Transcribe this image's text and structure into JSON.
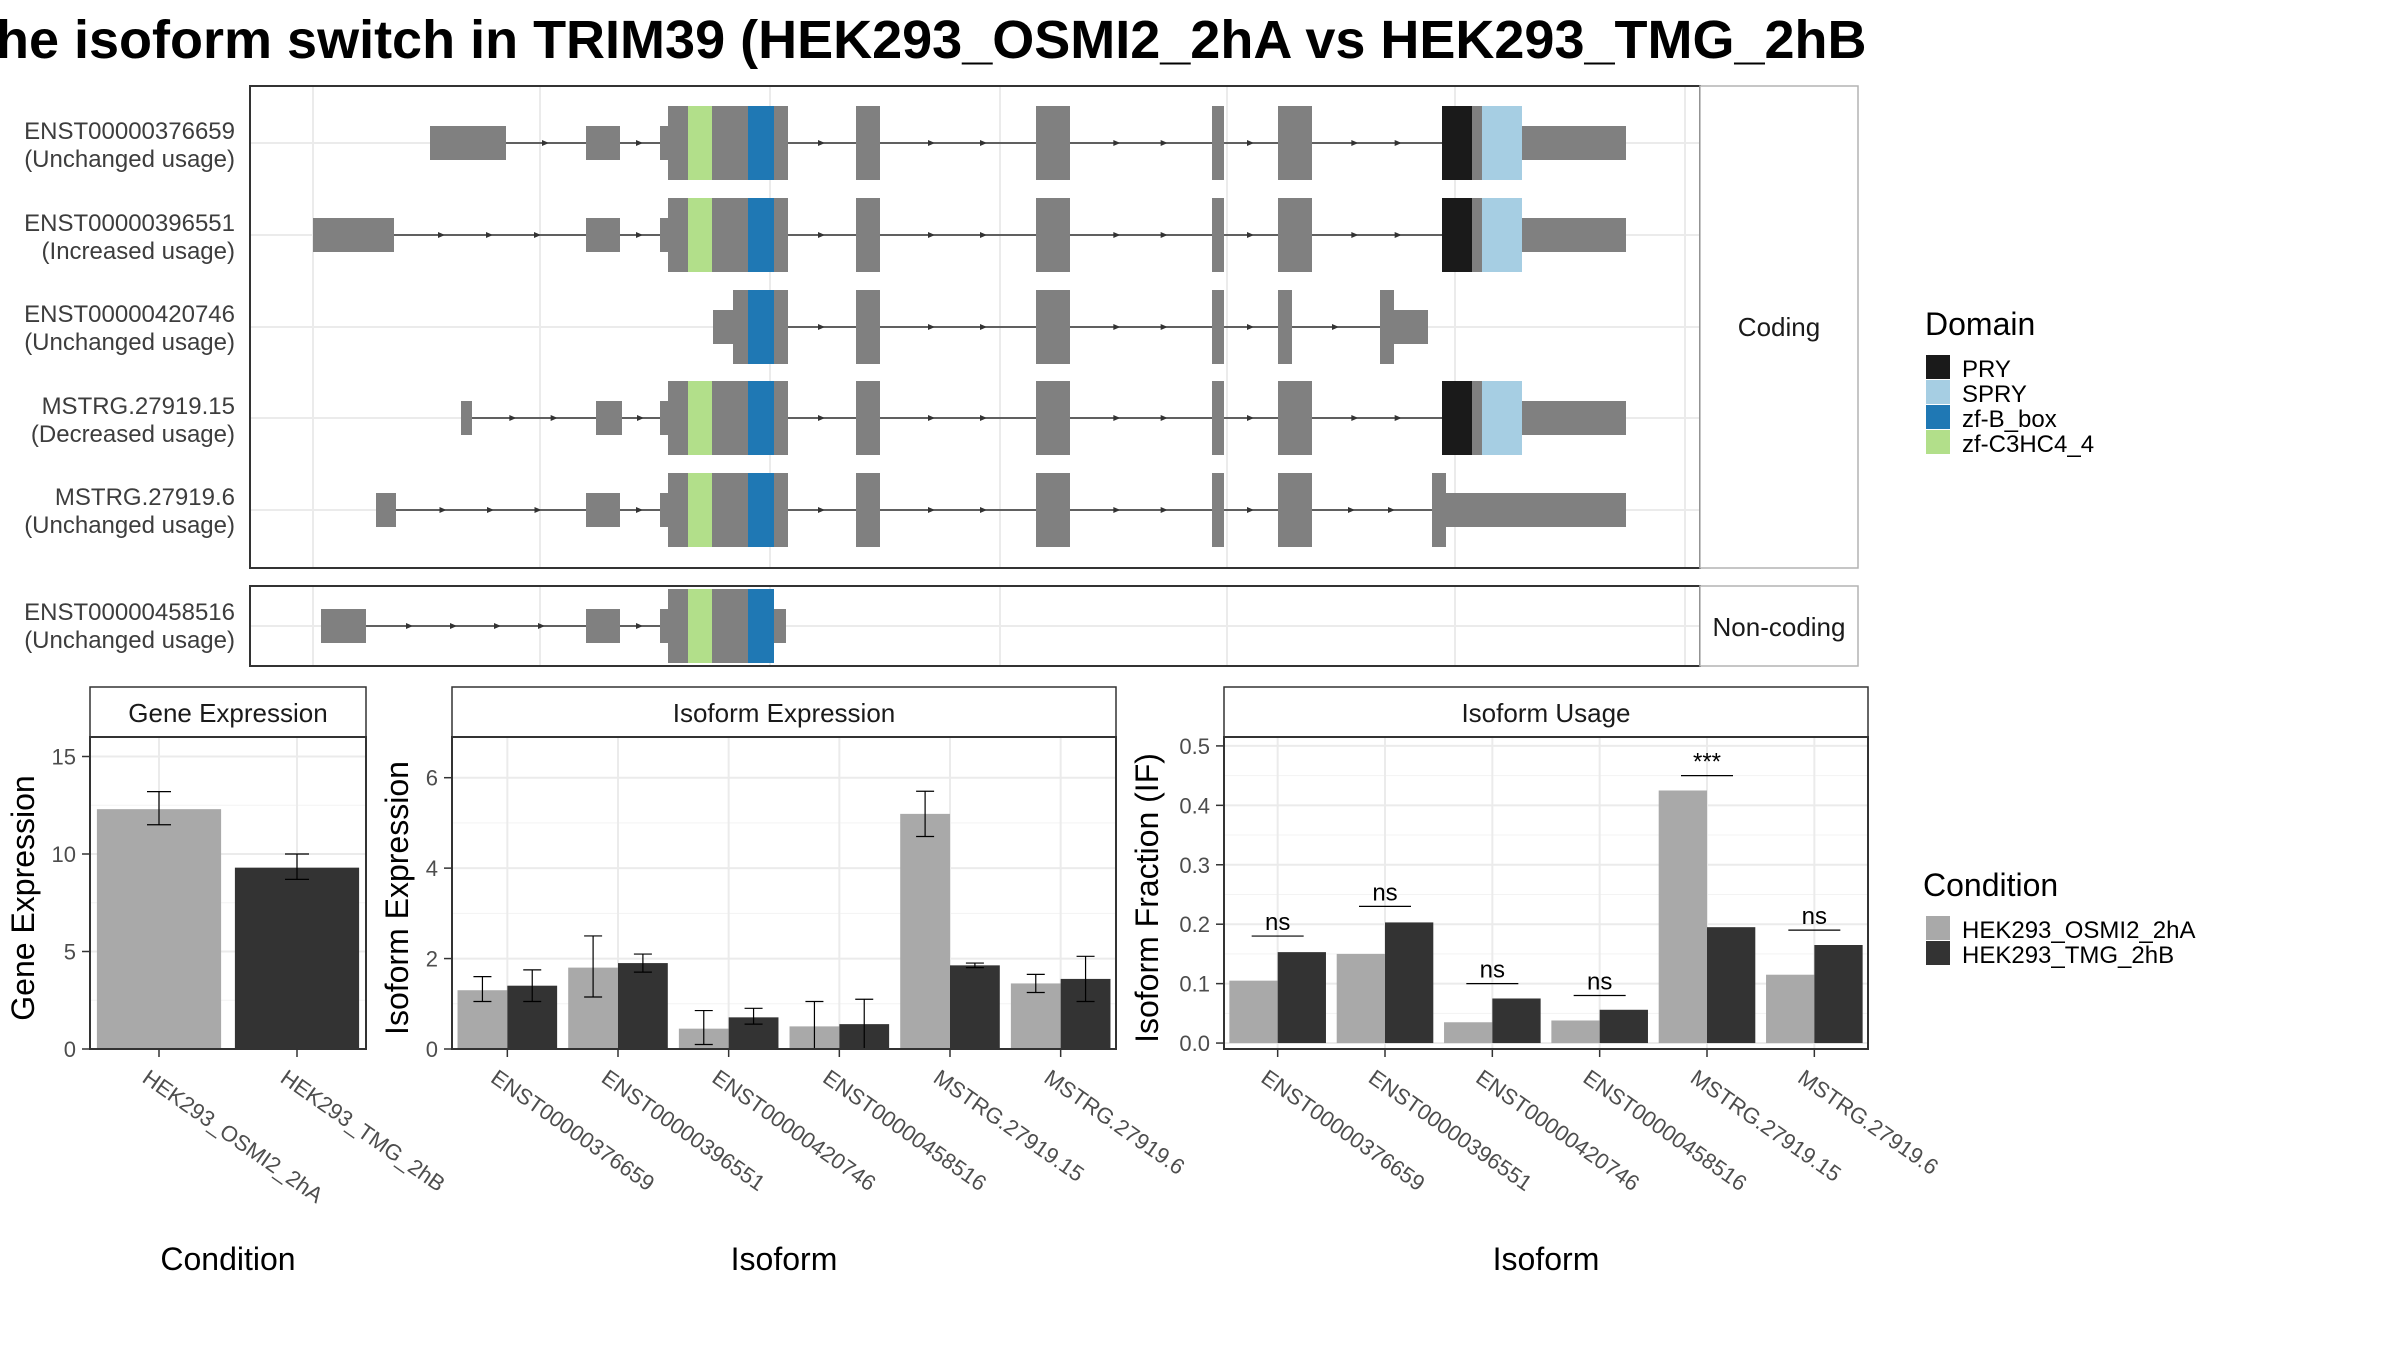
{
  "title": "he isoform switch in TRIM39 (HEK293_OSMI2_2hA vs HEK293_TMG_2hB",
  "colors": {
    "PRY": "#1a1a1a",
    "SPRY": "#a6cee3",
    "zf-B_box": "#1f78b4",
    "zf-C3HC4_4": "#b2df8a",
    "exon": "#808080",
    "cond1": "#a9a9a9",
    "cond2": "#333333"
  },
  "structure": {
    "coding_label": "Coding",
    "noncoding_label": "Non-coding",
    "isoforms": [
      {
        "id": "ENST00000376659",
        "usage": "(Unchanged usage)"
      },
      {
        "id": "ENST00000396551",
        "usage": "(Increased usage)"
      },
      {
        "id": "ENST00000420746",
        "usage": "(Unchanged usage)"
      },
      {
        "id": "MSTRG.27919.15",
        "usage": "(Decreased usage)"
      },
      {
        "id": "MSTRG.27919.6",
        "usage": "(Unchanged usage)"
      },
      {
        "id": "ENST00000458516",
        "usage": "(Unchanged usage)"
      }
    ]
  },
  "legend_domain": {
    "title": "Domain",
    "items": [
      "PRY",
      "SPRY",
      "zf-B_box",
      "zf-C3HC4_4"
    ]
  },
  "legend_condition": {
    "title": "Condition",
    "items": [
      "HEK293_OSMI2_2hA",
      "HEK293_TMG_2hB"
    ]
  },
  "chart_data": [
    {
      "type": "bar",
      "title": "Gene Expression",
      "xlabel": "Condition",
      "ylabel": "Gene Expression",
      "categories": [
        "HEK293_OSMI2_2hA",
        "HEK293_TMG_2hB"
      ],
      "values": [
        12.3,
        9.3
      ],
      "errors": [
        [
          11.5,
          13.2
        ],
        [
          8.7,
          10.0
        ]
      ],
      "ylim": [
        0,
        16
      ],
      "yticks": [
        0,
        5,
        10,
        15
      ],
      "grid": true
    },
    {
      "type": "bar",
      "title": "Isoform Expression",
      "xlabel": "Isoform",
      "ylabel": "Isoform Expression",
      "categories": [
        "ENST00000376659",
        "ENST00000396551",
        "ENST00000420746",
        "ENST00000458516",
        "MSTRG.27919.15",
        "MSTRG.27919.6"
      ],
      "series": [
        {
          "name": "HEK293_OSMI2_2hA",
          "values": [
            1.3,
            1.8,
            0.45,
            0.5,
            5.2,
            1.45
          ],
          "errors": [
            [
              1.05,
              1.6
            ],
            [
              1.15,
              2.5
            ],
            [
              0.1,
              0.85
            ],
            [
              0.0,
              1.05
            ],
            [
              4.7,
              5.7
            ],
            [
              1.25,
              1.65
            ]
          ]
        },
        {
          "name": "HEK293_TMG_2hB",
          "values": [
            1.4,
            1.9,
            0.7,
            0.55,
            1.85,
            1.55
          ],
          "errors": [
            [
              1.05,
              1.75
            ],
            [
              1.7,
              2.1
            ],
            [
              0.55,
              0.9
            ],
            [
              0.0,
              1.1
            ],
            [
              1.8,
              1.9
            ],
            [
              1.05,
              2.05
            ]
          ]
        }
      ],
      "ylim": [
        0,
        6.9
      ],
      "yticks": [
        0,
        2,
        4,
        6
      ],
      "grid": true
    },
    {
      "type": "bar",
      "title": "Isoform Usage",
      "xlabel": "Isoform",
      "ylabel": "Isoform Fraction (IF)",
      "categories": [
        "ENST00000376659",
        "ENST00000396551",
        "ENST00000420746",
        "ENST00000458516",
        "MSTRG.27919.15",
        "MSTRG.27919.6"
      ],
      "series": [
        {
          "name": "HEK293_OSMI2_2hA",
          "values": [
            0.105,
            0.15,
            0.035,
            0.038,
            0.425,
            0.115
          ]
        },
        {
          "name": "HEK293_TMG_2hB",
          "values": [
            0.153,
            0.203,
            0.075,
            0.056,
            0.195,
            0.165
          ]
        }
      ],
      "significance": [
        {
          "label": "ns",
          "y": 0.18
        },
        {
          "label": "ns",
          "y": 0.23
        },
        {
          "label": "ns",
          "y": 0.1
        },
        {
          "label": "ns",
          "y": 0.08
        },
        {
          "label": "***",
          "y": 0.45
        },
        {
          "label": "ns",
          "y": 0.19
        }
      ],
      "ylim": [
        -0.01,
        0.515
      ],
      "yticks": [
        0.0,
        0.1,
        0.2,
        0.3,
        0.4,
        0.5
      ],
      "grid": true
    }
  ]
}
